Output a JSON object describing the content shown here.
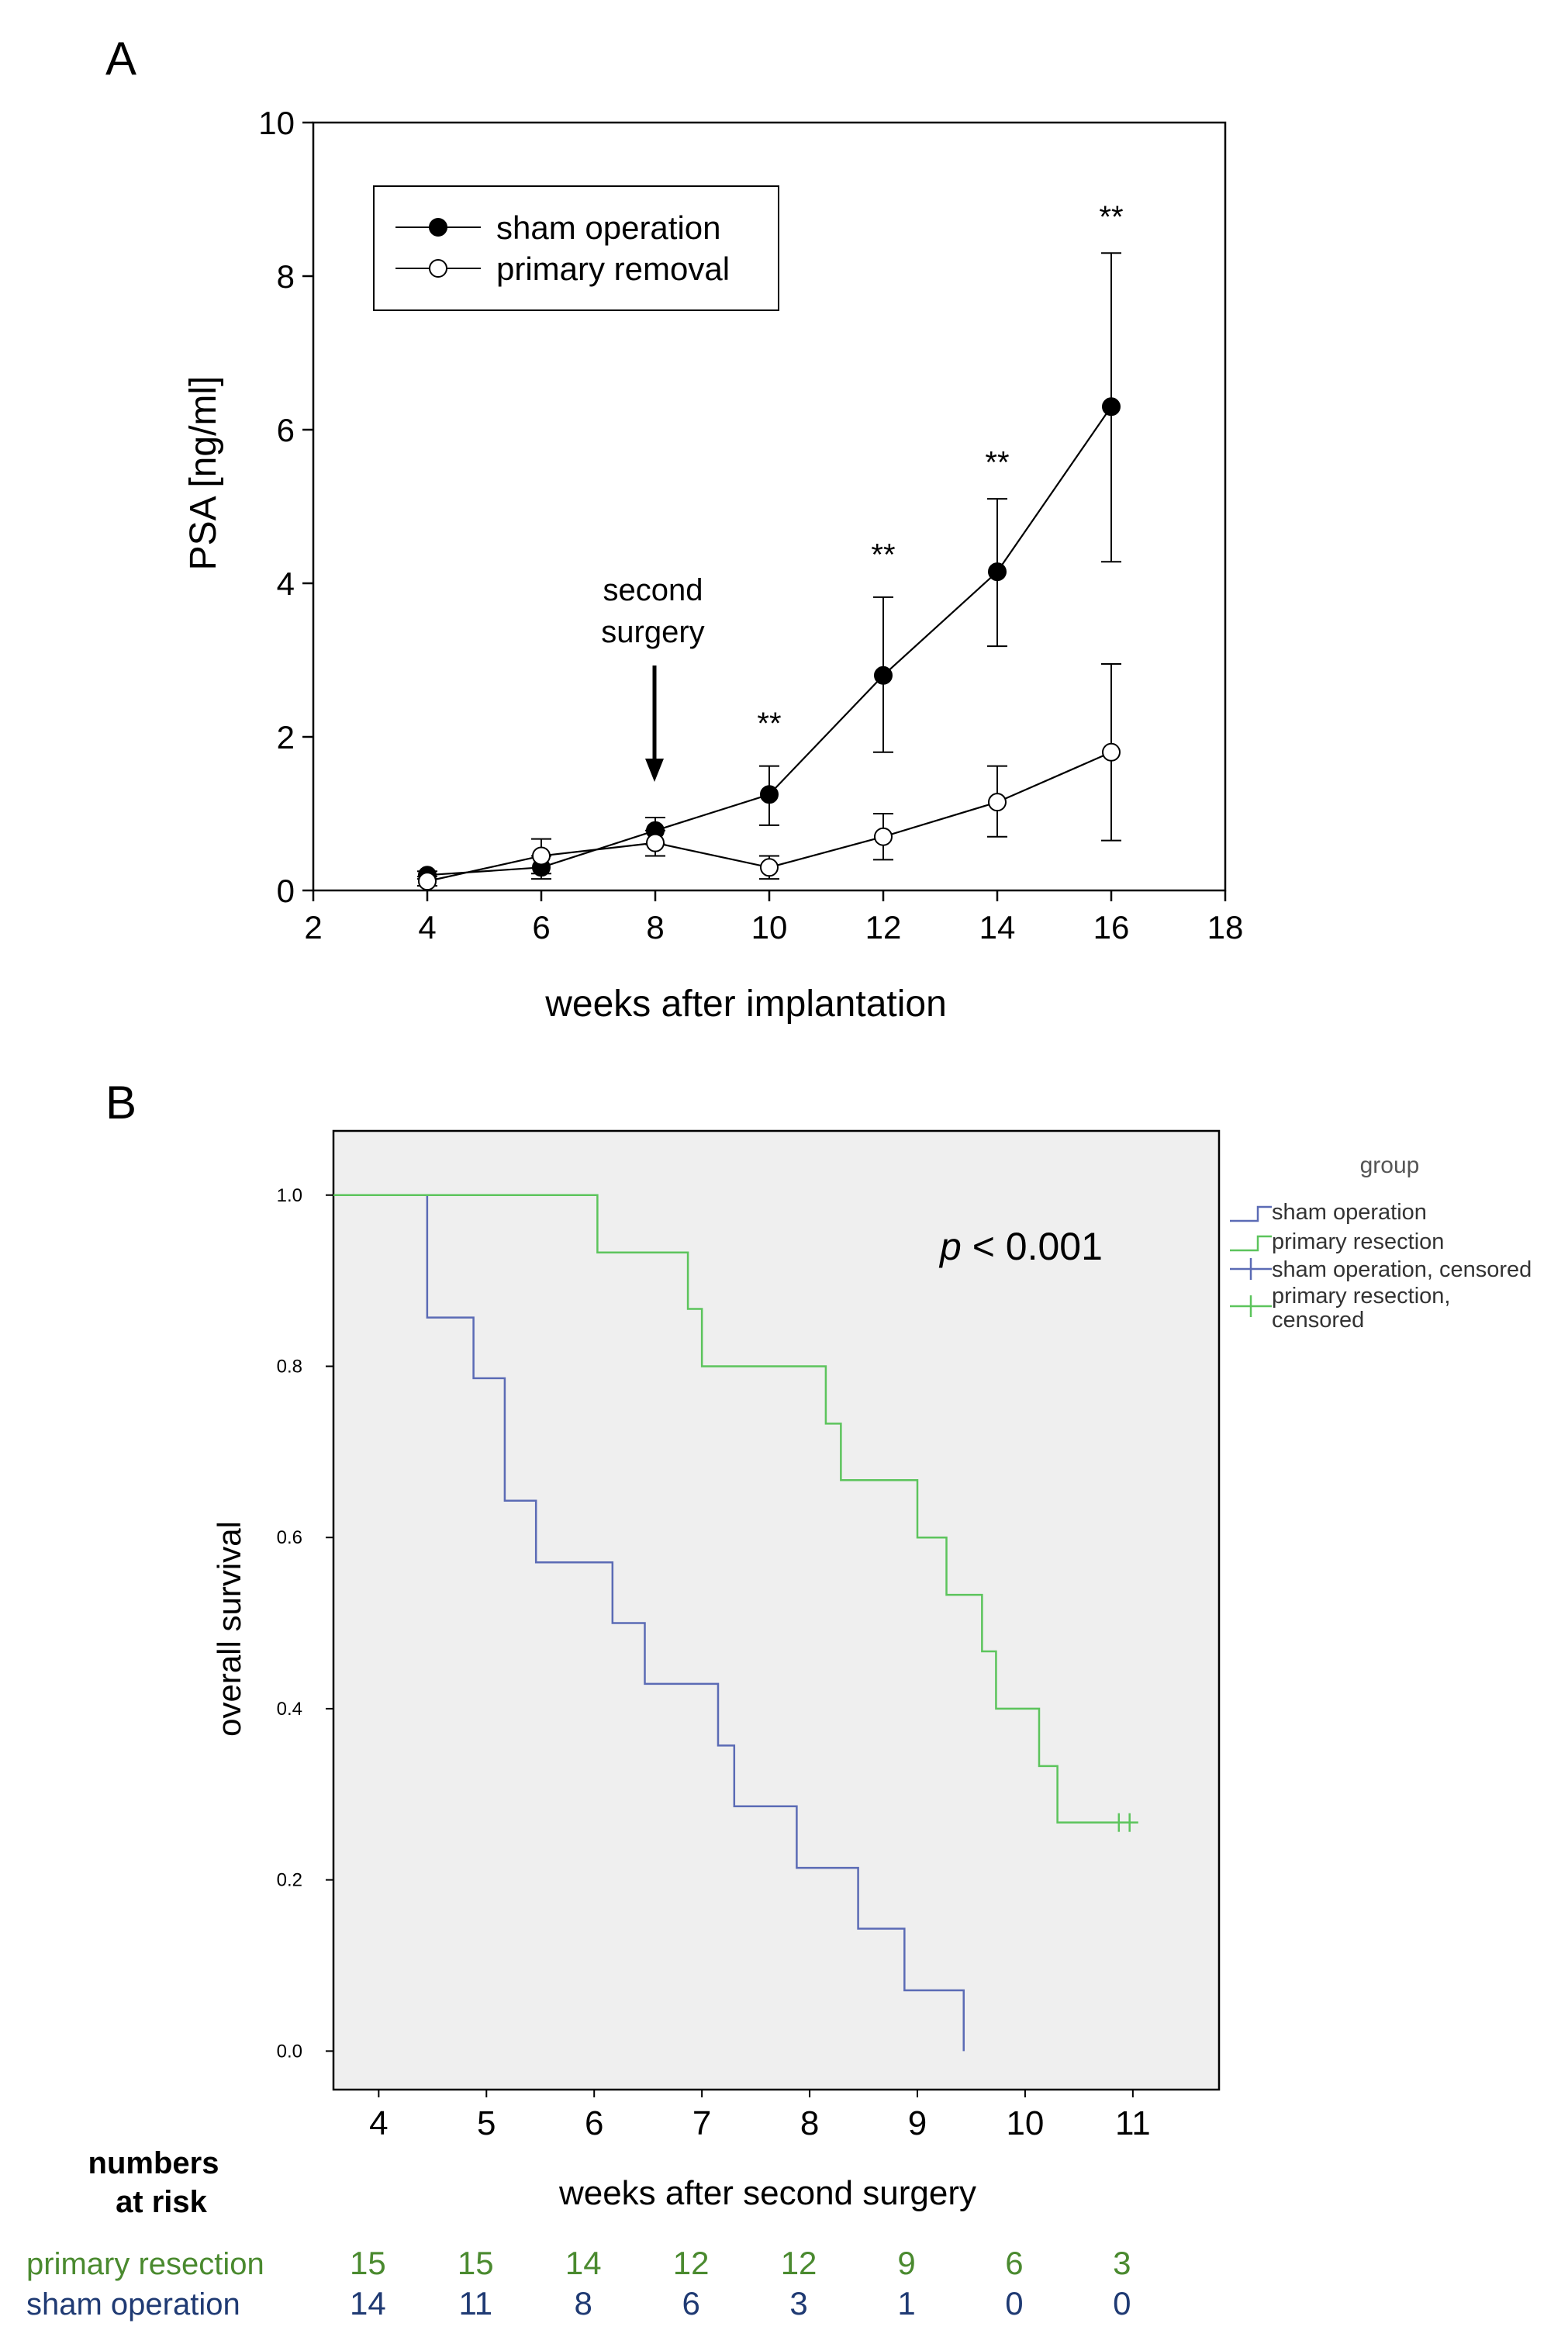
{
  "chart_data": [
    {
      "panel": "A",
      "type": "line",
      "xlabel": "weeks after implantation",
      "ylabel": "PSA [ng/ml]",
      "xlim": [
        2,
        18
      ],
      "ylim": [
        0,
        10
      ],
      "xticks": [
        "2",
        "4",
        "6",
        "8",
        "10",
        "12",
        "14",
        "16",
        "18"
      ],
      "yticks": [
        "0",
        "2",
        "4",
        "6",
        "8",
        "10"
      ],
      "legend_position": "top-left",
      "series": [
        {
          "name": "sham operation",
          "marker": "filled-circle",
          "x": [
            4,
            6,
            8,
            10,
            12,
            14,
            16
          ],
          "y": [
            0.2,
            0.3,
            0.78,
            1.25,
            2.8,
            4.15,
            6.3
          ],
          "err_low": [
            0.15,
            0.15,
            0.6,
            0.85,
            1.8,
            3.18,
            4.28
          ],
          "err_high": [
            0.25,
            0.45,
            0.95,
            1.62,
            3.82,
            5.1,
            8.3
          ]
        },
        {
          "name": "primary removal",
          "marker": "open-circle",
          "x": [
            4,
            6,
            8,
            10,
            12,
            14,
            16
          ],
          "y": [
            0.12,
            0.45,
            0.62,
            0.3,
            0.7,
            1.15,
            1.8
          ],
          "err_low": [
            0.06,
            0.22,
            0.45,
            0.15,
            0.4,
            0.7,
            0.65
          ],
          "err_high": [
            0.18,
            0.67,
            0.78,
            0.45,
            1.0,
            1.62,
            2.95
          ]
        }
      ],
      "annotations": {
        "second_surgery": {
          "label_line1": "second",
          "label_line2": "surgery",
          "x": 8
        },
        "significance": [
          {
            "x": 10,
            "y": 2.2,
            "label": "**"
          },
          {
            "x": 12,
            "y": 4.4,
            "label": "**"
          },
          {
            "x": 14,
            "y": 5.6,
            "label": "**"
          },
          {
            "x": 16,
            "y": 8.8,
            "label": "**"
          }
        ]
      }
    },
    {
      "panel": "B",
      "type": "line",
      "subtype": "kaplan-meier",
      "xlabel": "weeks after second surgery",
      "ylabel": "overall survival",
      "xlim": [
        3.58,
        11.8
      ],
      "ylim": [
        -0.045,
        1.075
      ],
      "xticks": [
        "4",
        "5",
        "6",
        "7",
        "8",
        "9",
        "10",
        "11"
      ],
      "yticks": [
        "0.0",
        "0.2",
        "0.4",
        "0.6",
        "0.8",
        "1.0"
      ],
      "p_value_prefix": "p",
      "p_value_rest": " < 0.001",
      "legend_title": "group",
      "legend_position": "right",
      "legend_entries": [
        {
          "line1": "sham operation",
          "line2": ""
        },
        {
          "line1": "primary resection",
          "line2": ""
        },
        {
          "line1": "sham operation, censored",
          "line2": ""
        },
        {
          "line1": "primary resection,",
          "line2": "censored"
        }
      ],
      "colors": {
        "sham operation": "#5b6bb5",
        "primary resection": "#5cc45c"
      },
      "series": [
        {
          "name": "sham operation",
          "x": [
            3.58,
            4.45,
            4.88,
            5.17,
            5.46,
            6.17,
            6.47,
            7.15,
            7.3,
            7.88,
            8.45,
            8.88,
            9.43
          ],
          "y": [
            1.0,
            0.857,
            0.786,
            0.643,
            0.571,
            0.5,
            0.429,
            0.357,
            0.286,
            0.214,
            0.143,
            0.071,
            0.0
          ]
        },
        {
          "name": "primary resection",
          "x": [
            3.58,
            6.03,
            6.87,
            7.0,
            8.15,
            8.29,
            9.0,
            9.27,
            9.6,
            9.73,
            10.13,
            10.3
          ],
          "y": [
            1.0,
            0.933,
            0.867,
            0.8,
            0.733,
            0.667,
            0.6,
            0.533,
            0.467,
            0.4,
            0.333,
            0.267
          ],
          "end_x": 11.05,
          "censored_x": [
            10.87,
            10.97
          ]
        }
      ]
    }
  ],
  "panel_labels": {
    "a": "A",
    "b": "B"
  },
  "legend_a": {
    "item1": "sham operation",
    "item2": "primary removal"
  },
  "risk_table": {
    "title_line1": "numbers",
    "title_line2": "at risk",
    "primary_label": "primary resection",
    "sham_label": "sham operation",
    "primary_color": "#4a8a2f",
    "sham_color": "#1f3a73",
    "primary": [
      "15",
      "15",
      "14",
      "12",
      "12",
      "9",
      "6",
      "3"
    ],
    "sham": [
      "14",
      "11",
      "8",
      "6",
      "3",
      "1",
      "0",
      "0"
    ]
  }
}
